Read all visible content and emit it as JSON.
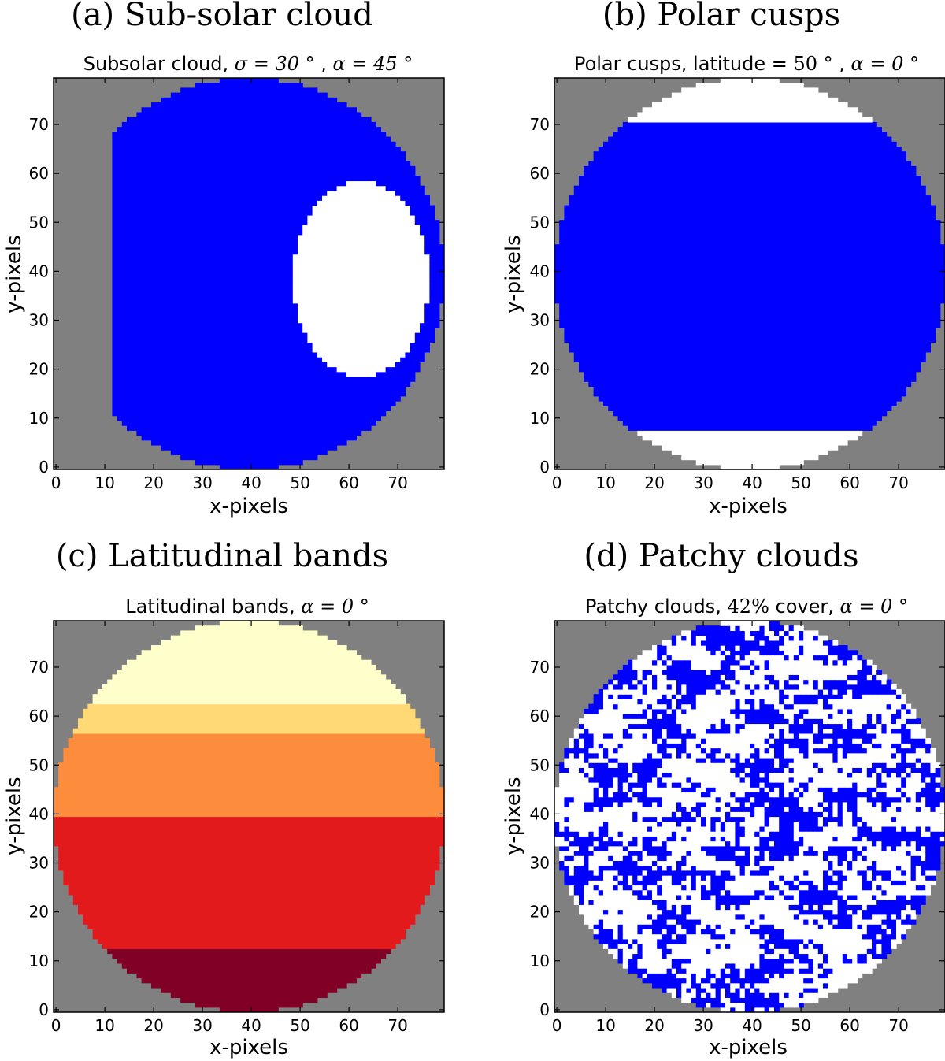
{
  "figure": {
    "colors": {
      "background": "#808080",
      "blue": "#0000ff",
      "white": "#ffffff",
      "edge": "#6e6e6e"
    }
  },
  "chart_data": [
    {
      "panel": "(a) Sub-solar cloud",
      "type": "heatmap",
      "title": "Subsolar cloud, σ = 30 ° , α = 45 °",
      "title_parts": {
        "prefix": "Subsolar cloud, ",
        "sigma": "σ = 30 °",
        "sep": " , ",
        "alpha": "α = 45 °"
      },
      "xlabel": "x-pixels",
      "ylabel": "y-pixels",
      "xlim": [
        0,
        80
      ],
      "ylim": [
        0,
        80
      ],
      "xticks": [
        0,
        10,
        20,
        30,
        40,
        50,
        60,
        70
      ],
      "yticks": [
        0,
        10,
        20,
        30,
        40,
        50,
        60,
        70
      ],
      "disk": {
        "center_x": 40,
        "center_y": 40,
        "radius": 40
      },
      "illuminated_limb_x": 12,
      "cloud": {
        "center_x": 63,
        "center_y": 39,
        "semi_x": 14,
        "semi_y": 20
      },
      "colors": {
        "surface": "#0000ff",
        "cloud": "#ffffff"
      }
    },
    {
      "panel": "(b) Polar cusps",
      "type": "heatmap",
      "title": "Polar cusps, latitude = 50 ° , α = 0 °",
      "title_parts": {
        "prefix": "Polar cusps, latitude = ",
        "lat": "50 °",
        "sep": " , ",
        "alpha": "α = 0 °"
      },
      "xlabel": "x-pixels",
      "ylabel": "y-pixels",
      "xlim": [
        0,
        80
      ],
      "ylim": [
        0,
        80
      ],
      "xticks": [
        0,
        10,
        20,
        30,
        40,
        50,
        60,
        70
      ],
      "yticks": [
        0,
        10,
        20,
        30,
        40,
        50,
        60,
        70
      ],
      "disk": {
        "center_x": 40,
        "center_y": 40,
        "radius": 40
      },
      "cusp_boundaries_y": [
        8.5,
        71
      ],
      "colors": {
        "surface": "#0000ff",
        "cusp": "#ffffff"
      }
    },
    {
      "panel": "(c) Latitudinal bands",
      "type": "heatmap",
      "title": "Latitudinal bands, α = 0 °",
      "title_parts": {
        "prefix": "Latitudinal bands, ",
        "alpha": "α = 0 °"
      },
      "xlabel": "x-pixels",
      "ylabel": "y-pixels",
      "xlim": [
        0,
        80
      ],
      "ylim": [
        0,
        80
      ],
      "xticks": [
        0,
        10,
        20,
        30,
        40,
        50,
        60,
        70
      ],
      "yticks": [
        0,
        10,
        20,
        30,
        40,
        50,
        60,
        70
      ],
      "disk": {
        "center_x": 40,
        "center_y": 40,
        "radius": 40
      },
      "bands": [
        {
          "y_from": 0,
          "y_to": 13.5,
          "color": "#800026"
        },
        {
          "y_from": 13.5,
          "y_to": 40,
          "color": "#e31a1c"
        },
        {
          "y_from": 40,
          "y_to": 57.5,
          "color": "#fd8d3c"
        },
        {
          "y_from": 57.5,
          "y_to": 63,
          "color": "#fed976"
        },
        {
          "y_from": 63,
          "y_to": 80,
          "color": "#ffffcc"
        }
      ]
    },
    {
      "panel": "(d) Patchy clouds",
      "type": "heatmap",
      "title": "Patchy clouds, 42% cover, α = 0 °",
      "title_parts": {
        "prefix": "Patchy clouds, ",
        "cover": "42%",
        "mid": " cover, ",
        "alpha": "α = 0 °"
      },
      "xlabel": "x-pixels",
      "ylabel": "y-pixels",
      "xlim": [
        0,
        80
      ],
      "ylim": [
        0,
        80
      ],
      "xticks": [
        0,
        10,
        20,
        30,
        40,
        50,
        60,
        70
      ],
      "yticks": [
        0,
        10,
        20,
        30,
        40,
        50,
        60,
        70
      ],
      "disk": {
        "center_x": 40,
        "center_y": 40,
        "radius": 40
      },
      "cloud_cover_fraction": 0.42,
      "colors": {
        "surface": "#0000ff",
        "cloud": "#ffffff"
      }
    }
  ]
}
